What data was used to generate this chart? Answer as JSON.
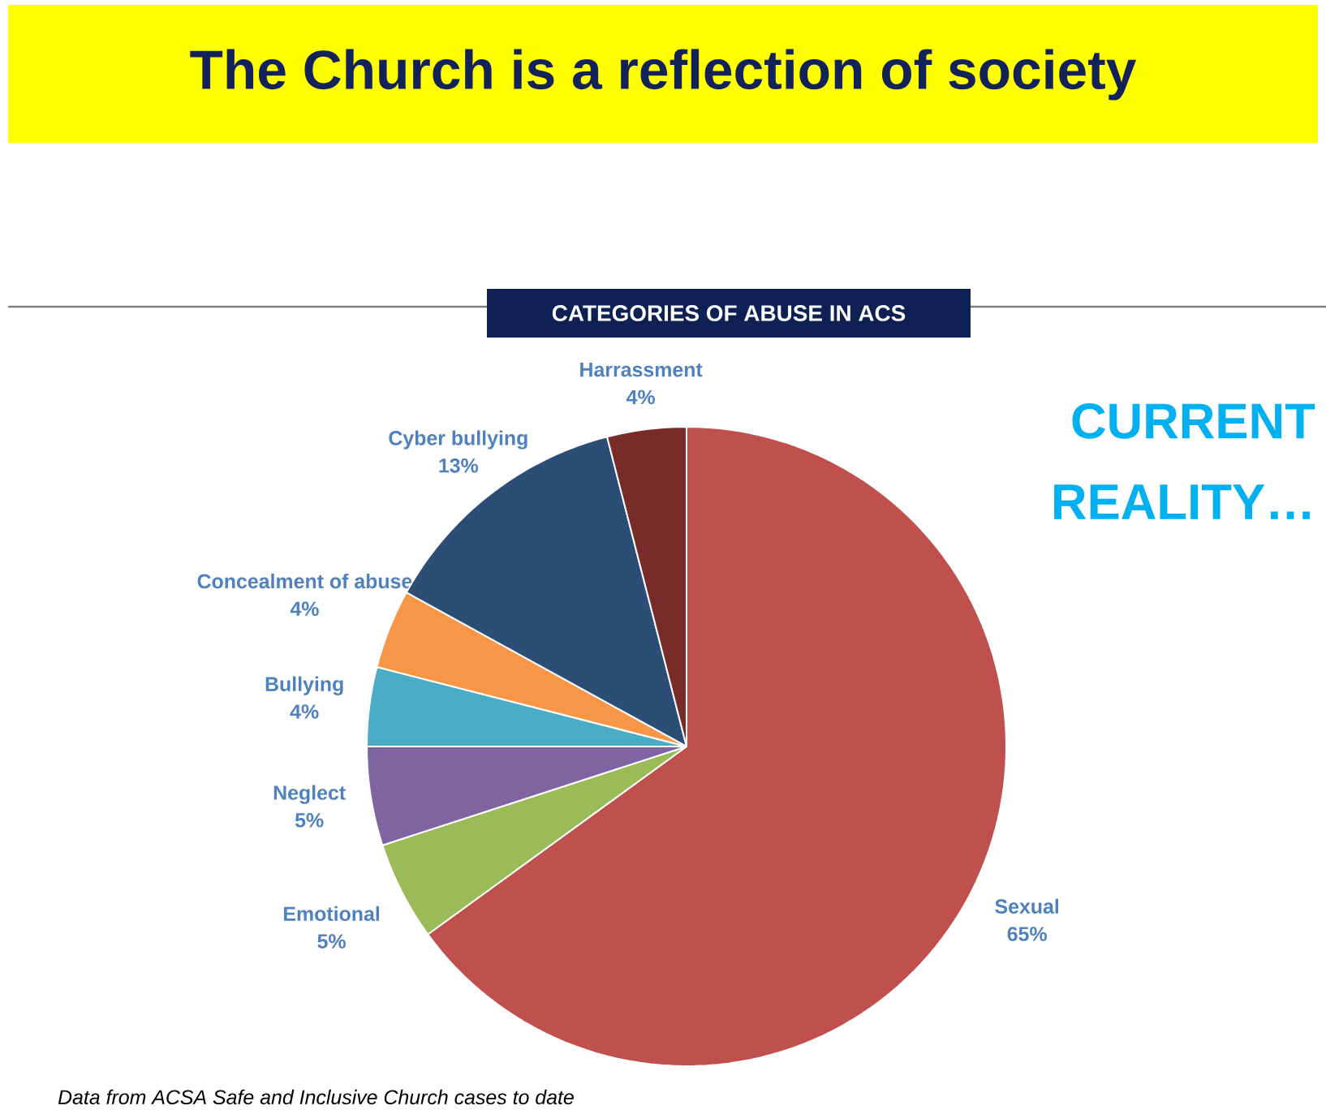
{
  "chart_data": {
    "type": "pie",
    "title": "The Church is a reflection of society",
    "subtitle": "CATEGORIES OF ABUSE IN ACS",
    "categories": [
      "Sexual",
      "Emotional",
      "Neglect",
      "Bullying",
      "Concealment of abuse",
      "Cyber bullying",
      "Harrassment"
    ],
    "values": [
      65,
      5,
      5,
      4,
      4,
      13,
      4
    ],
    "value_labels": [
      "65%",
      "5%",
      "5%",
      "4%",
      "4%",
      "13%",
      "4%"
    ],
    "colors": [
      "#c0504d",
      "#9bbb59",
      "#8064a2",
      "#4bacc6",
      "#f79646",
      "#2c4d75",
      "#772c2a"
    ],
    "annotations": [
      "CURRENT REALITY…",
      "Data from ACSA Safe and Inclusive Church cases to date"
    ]
  }
}
